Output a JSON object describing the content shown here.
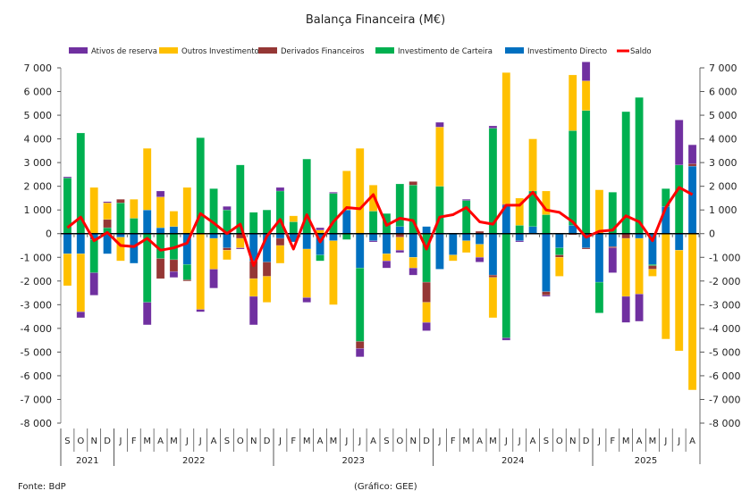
{
  "chart_data": {
    "type": "bar",
    "subtype": "stacked-bar-with-line",
    "title": "Balança Financeira (M€)",
    "xlabel": "",
    "ylabel": "",
    "ylim": [
      -8000,
      7000
    ],
    "yticks": [
      7000,
      6000,
      5000,
      4000,
      3000,
      2000,
      1000,
      0,
      -1000,
      -2000,
      -3000,
      -4000,
      -5000,
      -6000,
      -7000,
      -8000
    ],
    "ytick_labels": [
      "7 000",
      "6 000",
      "5 000",
      "4 000",
      "3 000",
      "2 000",
      "1 000",
      "0",
      "-1 000",
      "-2 000",
      "-3 000",
      "-4 000",
      "-5 000",
      "-6 000",
      "-7 000",
      "-8 000"
    ],
    "secondary_y": true,
    "grid": false,
    "legend_position": "top",
    "months": [
      "S",
      "O",
      "N",
      "D",
      "J",
      "F",
      "M",
      "A",
      "M",
      "J",
      "J",
      "A",
      "S",
      "O",
      "N",
      "D",
      "J",
      "F",
      "M",
      "A",
      "M",
      "J",
      "J",
      "A",
      "S",
      "O",
      "N",
      "D",
      "J",
      "F",
      "M",
      "A",
      "M",
      "J",
      "J",
      "A",
      "S",
      "O",
      "N",
      "D",
      "J",
      "F",
      "M",
      "A",
      "M",
      "J",
      "J",
      "A"
    ],
    "years": [
      {
        "label": "2021",
        "start": 0,
        "count": 4
      },
      {
        "label": "2022",
        "start": 4,
        "count": 12
      },
      {
        "label": "2023",
        "start": 16,
        "count": 12
      },
      {
        "label": "2024",
        "start": 28,
        "count": 12
      },
      {
        "label": "2025",
        "start": 40,
        "count": 8
      }
    ],
    "series": [
      {
        "name": "Ativos de reserva",
        "color": "#7030A0",
        "kind": "bar",
        "values": [
          50,
          -250,
          -950,
          50,
          0,
          0,
          -950,
          250,
          -250,
          0,
          -100,
          -800,
          150,
          -50,
          -1200,
          0,
          150,
          0,
          -200,
          100,
          50,
          0,
          -350,
          -50,
          -300,
          -100,
          -300,
          -350,
          200,
          0,
          50,
          -200,
          100,
          -100,
          -50,
          0,
          -50,
          0,
          0,
          800,
          0,
          -1050,
          -1100,
          -1150,
          0,
          0,
          1900,
          800
        ]
      },
      {
        "name": "Outros Investimentos",
        "color": "#FFC000",
        "kind": "bar",
        "values": [
          -1350,
          -2450,
          1950,
          700,
          -1000,
          800,
          2600,
          1300,
          650,
          1950,
          -3200,
          -1300,
          -400,
          -400,
          -750,
          -1100,
          -750,
          250,
          -2050,
          150,
          -2700,
          1650,
          3600,
          1100,
          -300,
          -550,
          -450,
          -850,
          2500,
          -250,
          -500,
          -550,
          -1700,
          5550,
          1150,
          2200,
          1000,
          -800,
          2350,
          1250,
          1850,
          0,
          -2450,
          -2350,
          -300,
          -4450,
          -4250,
          -6600
        ]
      },
      {
        "name": "Derivados Financeiros",
        "color": "#953735",
        "kind": "bar",
        "values": [
          0,
          0,
          0,
          350,
          150,
          0,
          0,
          -850,
          -500,
          -50,
          0,
          0,
          -100,
          -200,
          -750,
          -600,
          -300,
          0,
          0,
          0,
          0,
          0,
          -300,
          0,
          0,
          -150,
          150,
          -850,
          0,
          0,
          0,
          100,
          -100,
          50,
          0,
          0,
          -150,
          -100,
          -50,
          -50,
          0,
          -50,
          -200,
          0,
          -150,
          0,
          0,
          100
        ]
      },
      {
        "name": "Investimento de Carteira",
        "color": "#00B050",
        "kind": "bar",
        "values": [
          2350,
          4250,
          -1400,
          250,
          1300,
          650,
          -2900,
          -1050,
          -1100,
          -650,
          4050,
          1900,
          1000,
          2900,
          900,
          1000,
          1800,
          500,
          3150,
          -250,
          1700,
          -250,
          -3100,
          950,
          850,
          1800,
          2050,
          -2050,
          2000,
          0,
          1400,
          0,
          4450,
          -4400,
          350,
          1500,
          800,
          -300,
          4000,
          5200,
          -1300,
          1750,
          5150,
          5750,
          -50,
          750,
          2900,
          0
        ]
      },
      {
        "name": "Investimento Directo",
        "color": "#0070C0",
        "kind": "bar",
        "values": [
          -850,
          -850,
          -250,
          -850,
          -150,
          -1250,
          1000,
          250,
          300,
          -1300,
          0,
          -200,
          -600,
          0,
          -1150,
          -1200,
          -200,
          -350,
          -650,
          -900,
          -300,
          1000,
          -1450,
          -300,
          -850,
          300,
          -1000,
          300,
          -1500,
          -900,
          -300,
          -450,
          -1750,
          1200,
          -300,
          300,
          -2450,
          -600,
          350,
          -600,
          -2050,
          -550,
          0,
          -200,
          -1300,
          1150,
          -700,
          2850
        ]
      },
      {
        "name": "Saldo",
        "color": "#FF0000",
        "kind": "line",
        "values": [
          250,
          700,
          -300,
          50,
          -500,
          -550,
          -200,
          -700,
          -600,
          -400,
          850,
          450,
          0,
          400,
          -1350,
          -100,
          600,
          -650,
          800,
          -350,
          500,
          1100,
          1050,
          1650,
          350,
          650,
          550,
          -650,
          700,
          800,
          1100,
          500,
          400,
          1200,
          1200,
          1750,
          1000,
          900,
          500,
          -150,
          100,
          150,
          750,
          500,
          -300,
          1100,
          1950,
          1650
        ]
      }
    ]
  },
  "legend": [
    {
      "label": "Ativos de reserva",
      "color": "#7030A0",
      "shape": "rect"
    },
    {
      "label": "Outros Investimentos",
      "color": "#FFC000",
      "shape": "rect"
    },
    {
      "label": "Derivados Financeiros",
      "color": "#953735",
      "shape": "rect"
    },
    {
      "label": "Investimento de Carteira",
      "color": "#00B050",
      "shape": "rect"
    },
    {
      "label": "Investimento Directo",
      "color": "#0070C0",
      "shape": "rect"
    },
    {
      "label": "Saldo",
      "color": "#FF0000",
      "shape": "line"
    }
  ],
  "footer": {
    "source": "Fonte: BdP",
    "credit": "(Gráfico: GEE)"
  }
}
